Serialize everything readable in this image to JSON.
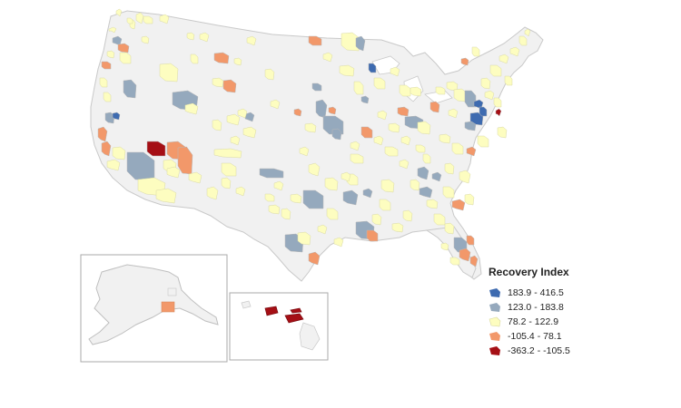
{
  "legend": {
    "title": "Recovery Index",
    "items": [
      {
        "label": "183.9 - 416.5",
        "color": "#3e6bb0"
      },
      {
        "label": "123.0 - 183.8",
        "color": "#95a9bd"
      },
      {
        "label": "78.2 - 122.9",
        "color": "#fdfdc0"
      },
      {
        "label": "-105.4 - 78.1",
        "color": "#f2986a"
      },
      {
        "label": "-363.2 - -105.5",
        "color": "#a50f15"
      }
    ]
  },
  "colors": {
    "land": "#f1f1f1",
    "border": "#c9c9c9",
    "water": "#ffffff",
    "inset_frame": "#aaaaaa"
  },
  "insets": [
    "alaska",
    "hawaii"
  ]
}
